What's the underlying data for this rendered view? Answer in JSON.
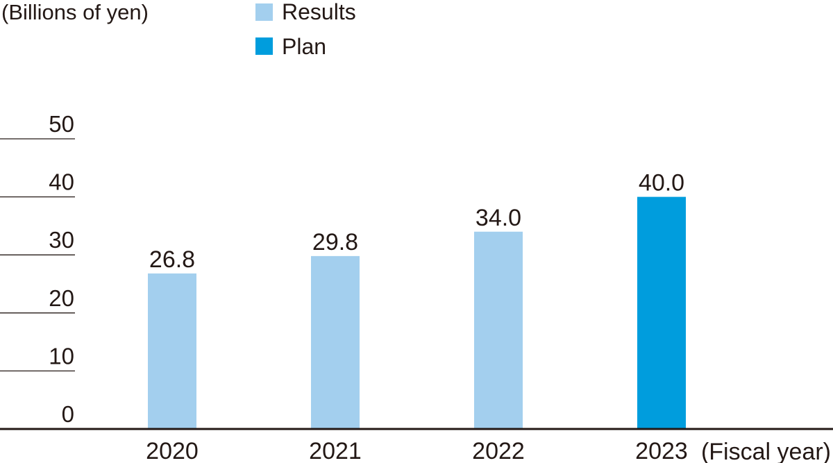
{
  "chart_data": {
    "type": "bar",
    "categories": [
      "2020",
      "2021",
      "2022",
      "2023"
    ],
    "values": [
      26.8,
      29.8,
      34.0,
      40.0
    ],
    "value_labels": [
      "26.8",
      "29.8",
      "34.0",
      "40.0"
    ],
    "bar_kind": [
      "Results",
      "Results",
      "Results",
      "Plan"
    ],
    "ylabel": "(Billions of yen)",
    "xlabel": "(Fiscal year)",
    "ylim": [
      0,
      50
    ],
    "yticks": [
      0,
      10,
      20,
      30,
      40,
      50
    ],
    "ytick_labels": [
      "0",
      "10",
      "20",
      "30",
      "40",
      "50"
    ],
    "grid": true,
    "legend": {
      "placement": "top",
      "entries": [
        {
          "label": "Results",
          "color": "#a3cfee"
        },
        {
          "label": "Plan",
          "color": "#009ddd"
        }
      ]
    },
    "colors": {
      "Results": "#a3cfee",
      "Plan": "#009ddd",
      "axis": "#231815",
      "grid": "#231815"
    }
  }
}
